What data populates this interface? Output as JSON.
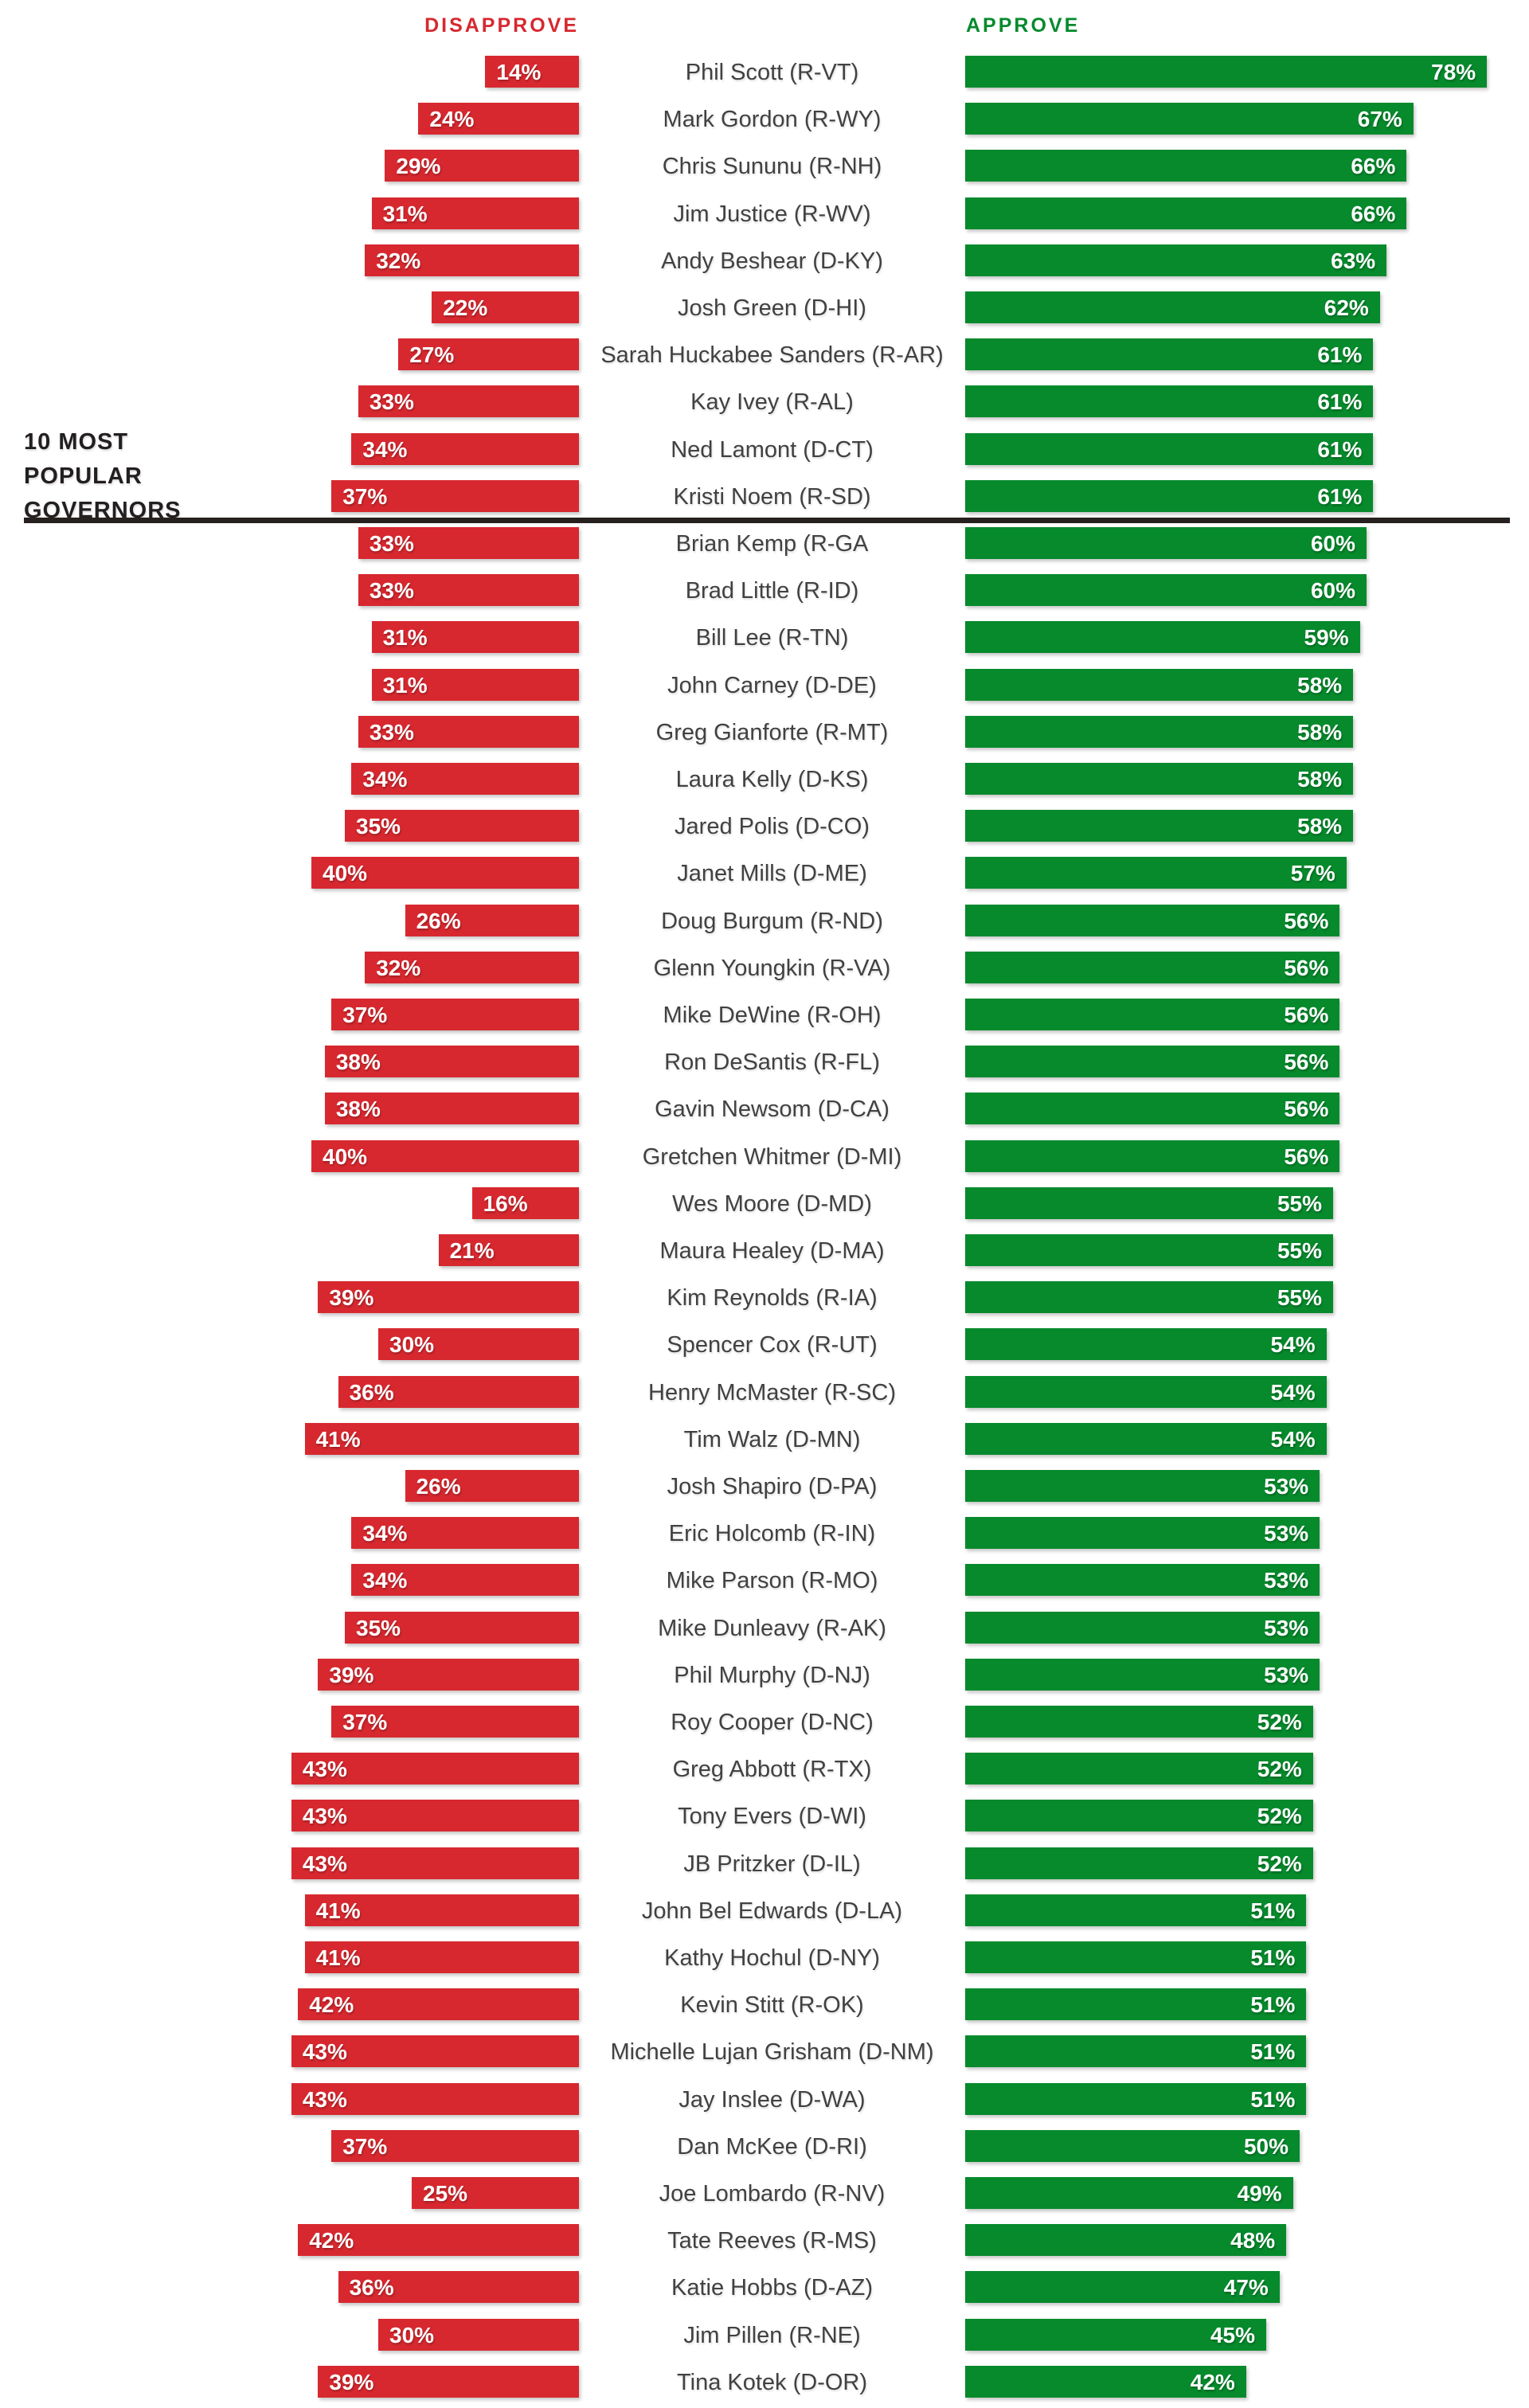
{
  "header": {
    "disapprove_label": "DISAPPROVE",
    "approve_label": "APPROVE"
  },
  "annotation": {
    "line1": "10 MOST",
    "line2": "POPULAR",
    "line3": "GOVERNORS"
  },
  "colors": {
    "disapprove_red": "#d7282f",
    "approve_green": "#068a2c",
    "name_text": "#414141",
    "annotation_text": "#231f20"
  },
  "chart_data": {
    "type": "bar",
    "orientation": "horizontal-diverging",
    "legend_position": "top",
    "top_group_size": 10,
    "value_range": [
      0,
      100
    ],
    "series": [
      {
        "name": "Disapprove",
        "color": "#d7282f",
        "side": "left"
      },
      {
        "name": "Approve",
        "color": "#068a2c",
        "side": "right"
      }
    ],
    "governors": [
      {
        "name": "Phil Scott (R-VT)",
        "disapprove": 14,
        "approve": 78
      },
      {
        "name": "Mark Gordon (R-WY)",
        "disapprove": 24,
        "approve": 67
      },
      {
        "name": "Chris Sununu (R-NH)",
        "disapprove": 29,
        "approve": 66
      },
      {
        "name": "Jim Justice (R-WV)",
        "disapprove": 31,
        "approve": 66
      },
      {
        "name": "Andy Beshear (D-KY)",
        "disapprove": 32,
        "approve": 63
      },
      {
        "name": "Josh Green (D-HI)",
        "disapprove": 22,
        "approve": 62
      },
      {
        "name": "Sarah Huckabee Sanders (R-AR)",
        "disapprove": 27,
        "approve": 61
      },
      {
        "name": "Kay Ivey (R-AL)",
        "disapprove": 33,
        "approve": 61
      },
      {
        "name": "Ned Lamont (D-CT)",
        "disapprove": 34,
        "approve": 61
      },
      {
        "name": "Kristi Noem (R-SD)",
        "disapprove": 37,
        "approve": 61
      },
      {
        "name": "Brian Kemp (R-GA",
        "disapprove": 33,
        "approve": 60
      },
      {
        "name": "Brad Little (R-ID)",
        "disapprove": 33,
        "approve": 60
      },
      {
        "name": "Bill Lee (R-TN)",
        "disapprove": 31,
        "approve": 59
      },
      {
        "name": "John Carney (D-DE)",
        "disapprove": 31,
        "approve": 58
      },
      {
        "name": "Greg Gianforte (R-MT)",
        "disapprove": 33,
        "approve": 58
      },
      {
        "name": "Laura Kelly (D-KS)",
        "disapprove": 34,
        "approve": 58
      },
      {
        "name": "Jared Polis (D-CO)",
        "disapprove": 35,
        "approve": 58
      },
      {
        "name": "Janet Mills (D-ME)",
        "disapprove": 40,
        "approve": 57
      },
      {
        "name": "Doug Burgum (R-ND)",
        "disapprove": 26,
        "approve": 56
      },
      {
        "name": "Glenn Youngkin (R-VA)",
        "disapprove": 32,
        "approve": 56
      },
      {
        "name": "Mike DeWine (R-OH)",
        "disapprove": 37,
        "approve": 56
      },
      {
        "name": "Ron DeSantis (R-FL)",
        "disapprove": 38,
        "approve": 56
      },
      {
        "name": "Gavin Newsom (D-CA)",
        "disapprove": 38,
        "approve": 56
      },
      {
        "name": "Gretchen Whitmer (D-MI)",
        "disapprove": 40,
        "approve": 56
      },
      {
        "name": "Wes Moore (D-MD)",
        "disapprove": 16,
        "approve": 55
      },
      {
        "name": "Maura Healey (D-MA)",
        "disapprove": 21,
        "approve": 55
      },
      {
        "name": "Kim Reynolds (R-IA)",
        "disapprove": 39,
        "approve": 55
      },
      {
        "name": "Spencer Cox (R-UT)",
        "disapprove": 30,
        "approve": 54
      },
      {
        "name": "Henry McMaster (R-SC)",
        "disapprove": 36,
        "approve": 54
      },
      {
        "name": "Tim Walz (D-MN)",
        "disapprove": 41,
        "approve": 54
      },
      {
        "name": "Josh Shapiro (D-PA)",
        "disapprove": 26,
        "approve": 53
      },
      {
        "name": "Eric Holcomb (R-IN)",
        "disapprove": 34,
        "approve": 53
      },
      {
        "name": "Mike Parson (R-MO)",
        "disapprove": 34,
        "approve": 53
      },
      {
        "name": "Mike Dunleavy (R-AK)",
        "disapprove": 35,
        "approve": 53
      },
      {
        "name": "Phil Murphy (D-NJ)",
        "disapprove": 39,
        "approve": 53
      },
      {
        "name": "Roy Cooper (D-NC)",
        "disapprove": 37,
        "approve": 52
      },
      {
        "name": "Greg Abbott (R-TX)",
        "disapprove": 43,
        "approve": 52
      },
      {
        "name": "Tony Evers (D-WI)",
        "disapprove": 43,
        "approve": 52
      },
      {
        "name": "JB Pritzker (D-IL)",
        "disapprove": 43,
        "approve": 52
      },
      {
        "name": "John Bel Edwards (D-LA)",
        "disapprove": 41,
        "approve": 51
      },
      {
        "name": "Kathy Hochul (D-NY)",
        "disapprove": 41,
        "approve": 51
      },
      {
        "name": "Kevin Stitt (R-OK)",
        "disapprove": 42,
        "approve": 51
      },
      {
        "name": "Michelle Lujan Grisham (D-NM)",
        "disapprove": 43,
        "approve": 51
      },
      {
        "name": "Jay Inslee (D-WA)",
        "disapprove": 43,
        "approve": 51
      },
      {
        "name": "Dan McKee (D-RI)",
        "disapprove": 37,
        "approve": 50
      },
      {
        "name": "Joe Lombardo (R-NV)",
        "disapprove": 25,
        "approve": 49
      },
      {
        "name": "Tate Reeves (R-MS)",
        "disapprove": 42,
        "approve": 48
      },
      {
        "name": "Katie Hobbs (D-AZ)",
        "disapprove": 36,
        "approve": 47
      },
      {
        "name": "Jim Pillen (R-NE)",
        "disapprove": 30,
        "approve": 45
      },
      {
        "name": "Tina Kotek (D-OR)",
        "disapprove": 39,
        "approve": 42
      }
    ]
  }
}
